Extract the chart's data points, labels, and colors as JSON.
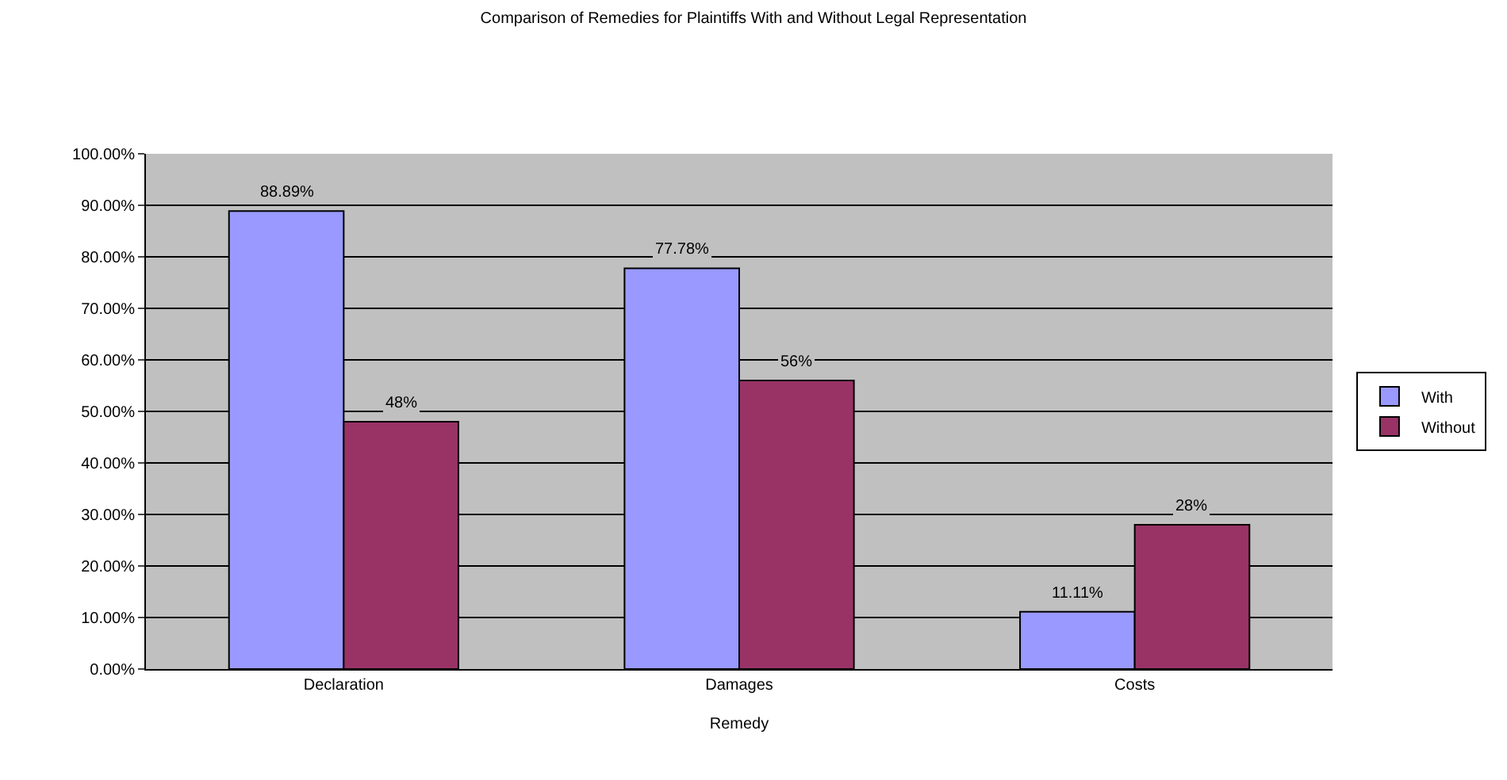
{
  "chart_data": {
    "type": "bar",
    "title": "Comparison of Remedies for Plaintiffs With and Without Legal Representation",
    "xlabel": "Remedy",
    "categories": [
      "Declaration",
      "Damages",
      "Costs"
    ],
    "series": [
      {
        "name": "With",
        "color": "#9999ff",
        "values": [
          88.89,
          77.78,
          11.11
        ],
        "value_labels": [
          "88.89%",
          "77.78%",
          "11.11%"
        ]
      },
      {
        "name": "Without",
        "color": "#993366",
        "values": [
          48,
          56,
          28
        ],
        "value_labels": [
          "48%",
          "56%",
          "28%"
        ]
      }
    ],
    "ylim": [
      0,
      100
    ],
    "yticks": [
      {
        "value": 0,
        "label": "0.00%"
      },
      {
        "value": 10,
        "label": "10.00%"
      },
      {
        "value": 20,
        "label": "20.00%"
      },
      {
        "value": 30,
        "label": "30.00%"
      },
      {
        "value": 40,
        "label": "40.00%"
      },
      {
        "value": 50,
        "label": "50.00%"
      },
      {
        "value": 60,
        "label": "60.00%"
      },
      {
        "value": 70,
        "label": "70.00%"
      },
      {
        "value": 80,
        "label": "80.00%"
      },
      {
        "value": 90,
        "label": "90.00%"
      },
      {
        "value": 100,
        "label": "100.00%"
      }
    ],
    "grid": "y",
    "legend": "right"
  }
}
